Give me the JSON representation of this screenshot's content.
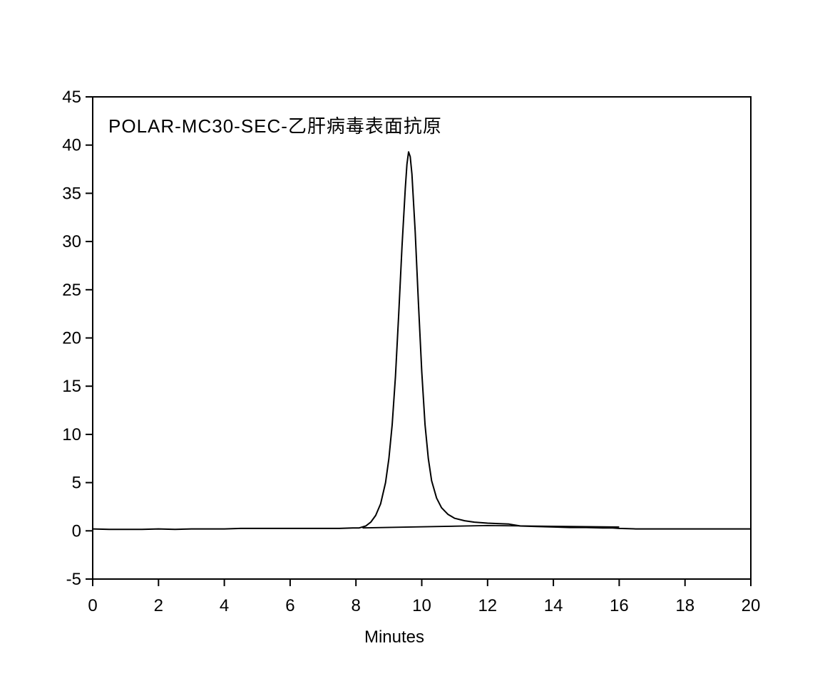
{
  "chart_data": {
    "type": "line",
    "title": "POLAR-MC30-SEC-乙肝病毒表面抗原",
    "xlabel": "Minutes",
    "ylabel": "",
    "xlim": [
      0,
      20
    ],
    "ylim": [
      -5,
      45
    ],
    "xticks": [
      0,
      2,
      4,
      6,
      8,
      10,
      12,
      14,
      16,
      18,
      20
    ],
    "yticks": [
      -5,
      0,
      5,
      10,
      15,
      20,
      25,
      30,
      35,
      40,
      45
    ],
    "grid": false,
    "legend": "none",
    "line_color": "#000000",
    "series": [
      {
        "x": [
          0,
          0.5,
          1,
          1.5,
          2,
          2.5,
          3,
          3.5,
          4,
          4.5,
          5,
          5.5,
          6,
          6.5,
          7,
          7.5,
          7.9,
          8.1,
          8.3,
          8.45,
          8.6,
          8.75,
          8.9,
          9.0,
          9.1,
          9.2,
          9.3,
          9.4,
          9.5,
          9.55,
          9.6,
          9.65,
          9.7,
          9.8,
          9.9,
          10.0,
          10.1,
          10.2,
          10.3,
          10.45,
          10.6,
          10.8,
          11.0,
          11.3,
          11.6,
          12.0,
          12.3,
          12.65,
          13.0,
          13.5,
          14.0,
          14.5,
          15.0,
          15.5,
          15.8,
          16.0,
          16.5,
          17,
          18,
          19,
          20
        ],
        "y": [
          0.2,
          0.15,
          0.15,
          0.15,
          0.2,
          0.15,
          0.2,
          0.2,
          0.2,
          0.25,
          0.25,
          0.25,
          0.25,
          0.25,
          0.25,
          0.25,
          0.3,
          0.3,
          0.5,
          0.9,
          1.6,
          2.8,
          5.0,
          7.5,
          11.0,
          16.0,
          22.5,
          29.5,
          35.5,
          38.0,
          39.3,
          38.8,
          37.0,
          31.0,
          23.5,
          16.5,
          11.0,
          7.5,
          5.2,
          3.4,
          2.4,
          1.7,
          1.3,
          1.05,
          0.9,
          0.8,
          0.75,
          0.7,
          0.5,
          0.45,
          0.4,
          0.35,
          0.35,
          0.3,
          0.3,
          0.25,
          0.2,
          0.2,
          0.2,
          0.2,
          0.2
        ]
      },
      {
        "x": [
          8.2,
          12.0,
          16.0
        ],
        "y": [
          0.3,
          0.55,
          0.4
        ]
      }
    ]
  }
}
